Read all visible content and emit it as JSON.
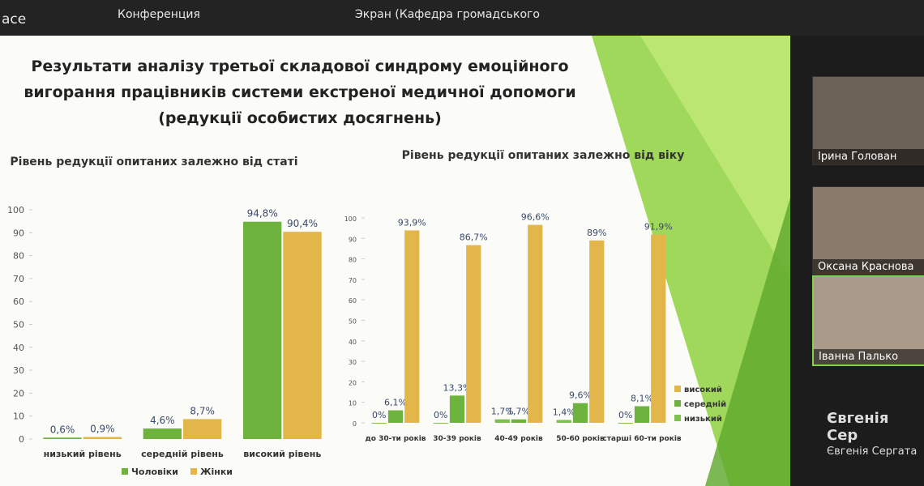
{
  "window": {
    "app": "ace",
    "conference": "Конференция",
    "screen": "Экран (Кафедра громадського"
  },
  "slide": {
    "title": "Результати аналізу третьої складової синдрому емоційного вигорання працівників системи екстреної медичної допомоги (редукції особистих досягнень)"
  },
  "chart_data": [
    {
      "type": "bar",
      "title": "Рівень редукції опитаних залежно від статі",
      "categories": [
        "низький рівень",
        "середній рівень",
        "високий рівень"
      ],
      "series": [
        {
          "name": "Чоловіки",
          "color": "#6fb33f",
          "values": [
            0.6,
            4.6,
            94.8
          ],
          "value_labels": [
            "0,6%",
            "4,6%",
            "94,8%"
          ]
        },
        {
          "name": "Жінки",
          "color": "#e2b649",
          "values": [
            0.9,
            8.7,
            90.4
          ],
          "value_labels": [
            "0,9%",
            "8,7%",
            "90,4%"
          ]
        }
      ],
      "ylim": [
        0,
        100
      ],
      "yticks": [
        0,
        10,
        20,
        30,
        40,
        50,
        60,
        70,
        80,
        90,
        100
      ],
      "legend": "bottom"
    },
    {
      "type": "bar",
      "title": "Рівень редукції опитаних залежно від віку",
      "categories": [
        "до 30-ти років",
        "30-39 років",
        "40-49 років",
        "50-60 років",
        "старші 60-ти років"
      ],
      "series": [
        {
          "name": "низький",
          "color": "#7fbf4f",
          "values": [
            0,
            0,
            1.7,
            1.4,
            0
          ],
          "value_labels": [
            "0%",
            "0%",
            "1,7%",
            "1,4%",
            "0%"
          ]
        },
        {
          "name": "середній",
          "color": "#6fb33f",
          "values": [
            6.1,
            13.3,
            1.7,
            9.6,
            8.1
          ],
          "value_labels": [
            "6,1%",
            "13,3%",
            "1,7%",
            "9,6%",
            "8,1%"
          ]
        },
        {
          "name": "високий",
          "color": "#e2b649",
          "values": [
            93.9,
            86.7,
            96.6,
            89,
            91.9
          ],
          "value_labels": [
            "93,9%",
            "86,7%",
            "96,6%",
            "89%",
            "91,9%"
          ]
        }
      ],
      "ylim": [
        0,
        100
      ],
      "yticks": [
        0,
        10,
        20,
        30,
        40,
        50,
        60,
        70,
        80,
        90,
        100
      ],
      "legend": "right"
    }
  ],
  "participants": [
    {
      "name": "Ірина Голован"
    },
    {
      "name": "Оксана Краснова"
    },
    {
      "name": "Іванна Палько"
    },
    {
      "name": "Євгенія Сер"
    },
    {
      "name": "Євгенія Сергата"
    }
  ]
}
